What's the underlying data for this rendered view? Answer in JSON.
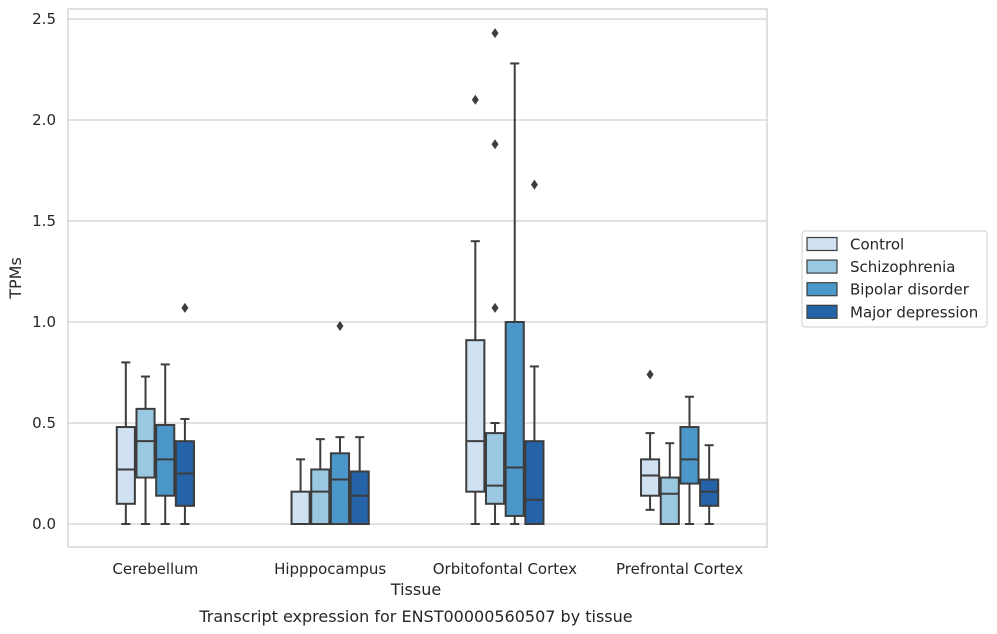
{
  "chart_data": {
    "type": "boxplot",
    "xlabel": "Tissue",
    "ylabel": "TPMs",
    "caption": "Transcript expression for ENST00000560507 by tissue",
    "ylim": [
      -0.12,
      2.56
    ],
    "yticks": [
      0.0,
      0.5,
      1.0,
      1.5,
      2.0,
      2.5
    ],
    "ytick_labels": [
      "0.0",
      "0.5",
      "1.0",
      "1.5",
      "2.0",
      "2.5"
    ],
    "grid": "horizontal",
    "legend_position": "right",
    "categories": [
      "Cerebellum",
      "Hipppocampus",
      "Orbitofontal Cortex",
      "Prefrontal Cortex"
    ],
    "series": [
      {
        "name": "Control",
        "color": "#d0e1f2",
        "boxes": [
          {
            "whislo": 0.0,
            "q1": 0.1,
            "med": 0.27,
            "q3": 0.48,
            "whishi": 0.8,
            "fliers": []
          },
          {
            "whislo": 0.0,
            "q1": 0.0,
            "med": 0.0,
            "q3": 0.16,
            "whishi": 0.32,
            "fliers": []
          },
          {
            "whislo": 0.0,
            "q1": 0.16,
            "med": 0.41,
            "q3": 0.91,
            "whishi": 1.4,
            "fliers": [
              2.1
            ]
          },
          {
            "whislo": 0.07,
            "q1": 0.14,
            "med": 0.24,
            "q3": 0.32,
            "whishi": 0.45,
            "fliers": [
              0.74
            ]
          }
        ]
      },
      {
        "name": "Schizophrenia",
        "color": "#9ac8e0",
        "boxes": [
          {
            "whislo": 0.0,
            "q1": 0.23,
            "med": 0.41,
            "q3": 0.57,
            "whishi": 0.73,
            "fliers": []
          },
          {
            "whislo": 0.0,
            "q1": 0.0,
            "med": 0.16,
            "q3": 0.27,
            "whishi": 0.42,
            "fliers": []
          },
          {
            "whislo": 0.0,
            "q1": 0.1,
            "med": 0.19,
            "q3": 0.45,
            "whishi": 0.5,
            "fliers": [
              1.07,
              1.88,
              2.43
            ]
          },
          {
            "whislo": 0.0,
            "q1": 0.0,
            "med": 0.15,
            "q3": 0.23,
            "whishi": 0.4,
            "fliers": []
          }
        ]
      },
      {
        "name": "Bipolar disorder",
        "color": "#4b97c9",
        "boxes": [
          {
            "whislo": 0.0,
            "q1": 0.14,
            "med": 0.32,
            "q3": 0.49,
            "whishi": 0.79,
            "fliers": []
          },
          {
            "whislo": 0.0,
            "q1": 0.0,
            "med": 0.22,
            "q3": 0.35,
            "whishi": 0.43,
            "fliers": [
              0.98
            ]
          },
          {
            "whislo": 0.0,
            "q1": 0.04,
            "med": 0.28,
            "q3": 1.0,
            "whishi": 2.28,
            "fliers": []
          },
          {
            "whislo": 0.0,
            "q1": 0.2,
            "med": 0.32,
            "q3": 0.48,
            "whishi": 0.63,
            "fliers": []
          }
        ]
      },
      {
        "name": "Major depression",
        "color": "#2563a8",
        "boxes": [
          {
            "whislo": 0.0,
            "q1": 0.09,
            "med": 0.25,
            "q3": 0.41,
            "whishi": 0.52,
            "fliers": [
              1.07
            ]
          },
          {
            "whislo": 0.0,
            "q1": 0.0,
            "med": 0.14,
            "q3": 0.26,
            "whishi": 0.43,
            "fliers": []
          },
          {
            "whislo": 0.0,
            "q1": 0.0,
            "med": 0.12,
            "q3": 0.41,
            "whishi": 0.78,
            "fliers": [
              1.68
            ]
          },
          {
            "whislo": 0.0,
            "q1": 0.09,
            "med": 0.16,
            "q3": 0.22,
            "whishi": 0.39,
            "fliers": []
          }
        ]
      }
    ]
  }
}
